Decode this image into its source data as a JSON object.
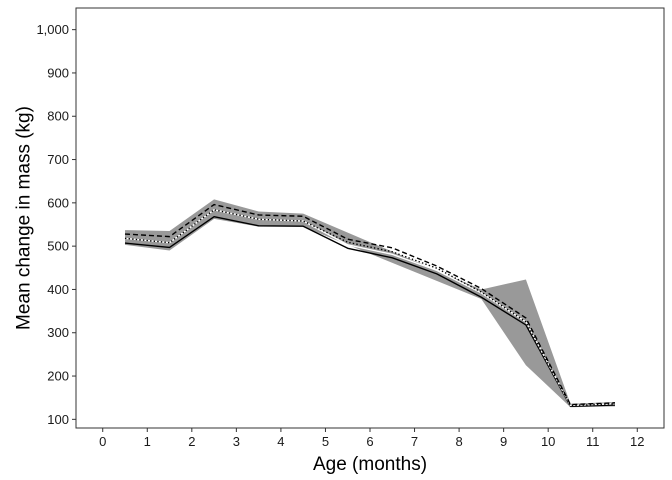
{
  "chart_data": {
    "type": "line",
    "xlabel": "Age (months)",
    "ylabel": "Mean change in mass (kg)",
    "xlim": [
      -0.6,
      12.6
    ],
    "ylim": [
      80,
      1050
    ],
    "x_ticks": [
      0,
      1,
      2,
      3,
      4,
      5,
      6,
      7,
      8,
      9,
      10,
      11,
      12
    ],
    "x_tick_labels": [
      "0",
      "1",
      "2",
      "3",
      "4",
      "5",
      "6",
      "7",
      "8",
      "9",
      "10",
      "11",
      "12"
    ],
    "y_ticks": [
      100,
      200,
      300,
      400,
      500,
      600,
      700,
      800,
      900,
      1000
    ],
    "y_tick_labels": [
      "100",
      "200",
      "300",
      "400",
      "500",
      "600",
      "700",
      "800",
      "900",
      "1,000"
    ],
    "grid": false,
    "legend": "none",
    "x": [
      0.5,
      1.5,
      2.5,
      3.5,
      4.5,
      5.5,
      6.5,
      7.5,
      8.5,
      9.5,
      10.5,
      11.5
    ],
    "band": {
      "color": "#999999",
      "points": [
        {
          "x": 0.5,
          "lower": 503,
          "upper": 537
        },
        {
          "x": 1.5,
          "lower": 490,
          "upper": 535
        },
        {
          "x": 2.5,
          "lower": 563,
          "upper": 608
        },
        {
          "x": 3.5,
          "lower": 545,
          "upper": 580
        },
        {
          "x": 4.5,
          "lower": 545,
          "upper": 575
        },
        {
          "x": 8.5,
          "lower": 378,
          "upper": 400
        },
        {
          "x": 9.5,
          "lower": 225,
          "upper": 423
        },
        {
          "x": 10.5,
          "lower": 128,
          "upper": 136
        },
        {
          "x": 11.5,
          "lower": 130,
          "upper": 140
        }
      ]
    },
    "series": [
      {
        "style": "solid",
        "color": "#000000",
        "values": [
          507,
          497,
          568,
          547,
          546,
          495,
          473,
          436,
          382,
          318,
          130,
          133
        ]
      },
      {
        "style": "solid",
        "color": "#ffffff",
        "values": [
          518,
          508,
          584,
          562,
          558,
          503,
          481,
          444,
          392,
          325,
          132,
          136
        ]
      },
      {
        "style": "dotted",
        "color": "#000000",
        "values": [
          518,
          508,
          584,
          562,
          558,
          509,
          487,
          449,
          394,
          325,
          132,
          136
        ]
      },
      {
        "style": "dashed",
        "color": "#000000",
        "values": [
          528,
          522,
          596,
          572,
          569,
          516,
          496,
          454,
          402,
          334,
          134,
          138
        ]
      }
    ]
  }
}
